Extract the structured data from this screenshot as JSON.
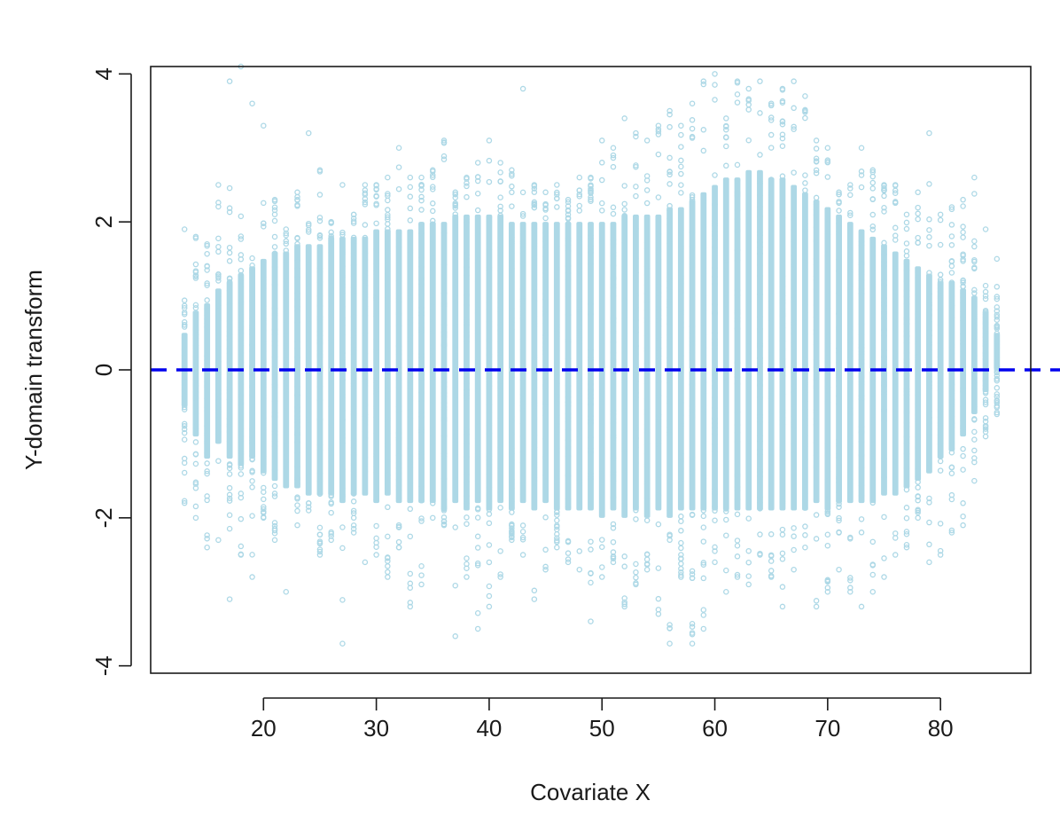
{
  "chart_data": {
    "type": "scatter",
    "title": "",
    "xlabel": "Covariate X",
    "ylabel": "Y-domain transform",
    "xlim": [
      10,
      88
    ],
    "ylim": [
      -4.1,
      4.1
    ],
    "x_ticks": [
      "20",
      "30",
      "40",
      "50",
      "60",
      "70",
      "80"
    ],
    "y_ticks": [
      "-4",
      "-2",
      "0",
      "2",
      "4"
    ],
    "grid": false,
    "legend": "none",
    "point_color": "#add8e6",
    "point_marker": "open-circle",
    "reference_line": {
      "y": 0,
      "style": "dashed",
      "color": "#0000ee"
    },
    "series": [
      {
        "x": [
          13,
          14,
          15,
          16,
          17,
          18,
          19,
          20,
          21,
          22,
          23,
          24,
          25,
          26,
          27,
          28,
          29,
          30,
          31,
          32,
          33,
          34,
          35,
          36,
          37,
          38,
          39,
          40,
          41,
          42,
          43,
          44,
          45,
          46,
          47,
          48,
          49,
          50,
          51,
          52,
          53,
          54,
          55,
          56,
          57,
          58,
          59,
          60,
          61,
          62,
          63,
          64,
          65,
          66,
          67,
          68,
          69,
          70,
          71,
          72,
          73,
          74,
          75,
          76,
          77,
          78,
          79,
          80,
          81,
          82,
          83,
          84,
          85
        ],
        "y_min": [
          -1.8,
          -2.0,
          -2.4,
          -2.3,
          -3.1,
          -2.5,
          -2.8,
          -2.0,
          -2.3,
          -3.0,
          -2.1,
          -1.9,
          -2.5,
          -2.3,
          -3.7,
          -2.2,
          -2.6,
          -2.5,
          -2.8,
          -2.4,
          -3.2,
          -2.9,
          -2.0,
          -2.1,
          -3.6,
          -2.8,
          -3.5,
          -3.2,
          -2.8,
          -2.3,
          -2.5,
          -3.1,
          -2.7,
          -2.4,
          -2.6,
          -2.7,
          -3.4,
          -2.8,
          -2.6,
          -3.2,
          -2.9,
          -2.7,
          -3.3,
          -3.7,
          -2.8,
          -3.7,
          -3.5,
          -2.6,
          -3.0,
          -2.8,
          -2.9,
          -2.5,
          -2.8,
          -3.2,
          -2.7,
          -2.4,
          -3.2,
          -3.0,
          -2.7,
          -3.0,
          -3.2,
          -3.0,
          -2.8,
          -2.5,
          -2.4,
          -2.0,
          -2.6,
          -2.5,
          -2.2,
          -2.1,
          -1.5,
          -0.9,
          -0.6
        ],
        "y_max": [
          1.9,
          1.8,
          1.7,
          2.5,
          3.9,
          4.1,
          3.6,
          3.3,
          2.3,
          1.9,
          2.4,
          3.2,
          2.7,
          2.0,
          2.5,
          2.1,
          2.5,
          2.5,
          2.6,
          3.0,
          2.6,
          2.6,
          2.7,
          3.1,
          2.4,
          2.6,
          2.8,
          3.1,
          2.8,
          2.7,
          3.8,
          2.5,
          2.4,
          2.5,
          2.3,
          2.6,
          2.6,
          3.1,
          3.0,
          3.4,
          3.2,
          3.1,
          3.3,
          3.5,
          3.3,
          3.6,
          3.9,
          4.0,
          3.4,
          3.9,
          3.8,
          3.9,
          3.6,
          3.8,
          3.9,
          3.7,
          3.1,
          3.0,
          2.4,
          2.5,
          3.0,
          2.7,
          2.5,
          2.5,
          2.1,
          2.4,
          3.2,
          2.1,
          2.2,
          2.3,
          2.6,
          1.9,
          1.5
        ],
        "core_low": [
          -0.5,
          -0.9,
          -1.2,
          -1.0,
          -1.2,
          -1.3,
          -1.2,
          -1.4,
          -1.5,
          -1.6,
          -1.6,
          -1.7,
          -1.7,
          -1.7,
          -1.8,
          -1.7,
          -1.7,
          -1.8,
          -1.7,
          -1.8,
          -1.8,
          -1.8,
          -1.8,
          -1.9,
          -1.8,
          -1.9,
          -1.8,
          -1.9,
          -1.8,
          -1.9,
          -1.8,
          -1.9,
          -1.8,
          -1.9,
          -1.9,
          -1.9,
          -1.9,
          -2.0,
          -1.9,
          -2.0,
          -1.9,
          -2.0,
          -1.9,
          -2.0,
          -1.9,
          -1.9,
          -1.9,
          -1.9,
          -1.9,
          -1.9,
          -1.9,
          -1.9,
          -1.9,
          -1.9,
          -1.9,
          -1.9,
          -1.8,
          -1.9,
          -1.8,
          -1.8,
          -1.8,
          -1.8,
          -1.7,
          -1.7,
          -1.6,
          -1.5,
          -1.4,
          -1.2,
          -1.1,
          -0.9,
          -0.6,
          -0.3,
          0.0
        ],
        "core_high": [
          0.5,
          0.8,
          0.9,
          1.1,
          1.2,
          1.3,
          1.4,
          1.5,
          1.6,
          1.6,
          1.7,
          1.7,
          1.7,
          1.8,
          1.8,
          1.8,
          1.8,
          1.9,
          1.9,
          1.9,
          1.9,
          2.0,
          2.0,
          2.0,
          2.1,
          2.1,
          2.1,
          2.1,
          2.1,
          2.0,
          2.0,
          2.0,
          2.0,
          2.0,
          2.0,
          2.0,
          2.0,
          2.0,
          2.0,
          2.1,
          2.1,
          2.1,
          2.1,
          2.2,
          2.2,
          2.3,
          2.4,
          2.5,
          2.6,
          2.6,
          2.7,
          2.7,
          2.6,
          2.6,
          2.5,
          2.4,
          2.3,
          2.2,
          2.1,
          2.0,
          1.9,
          1.8,
          1.7,
          1.6,
          1.5,
          1.4,
          1.3,
          1.2,
          1.2,
          1.1,
          1.0,
          0.8,
          0.5
        ]
      }
    ]
  }
}
